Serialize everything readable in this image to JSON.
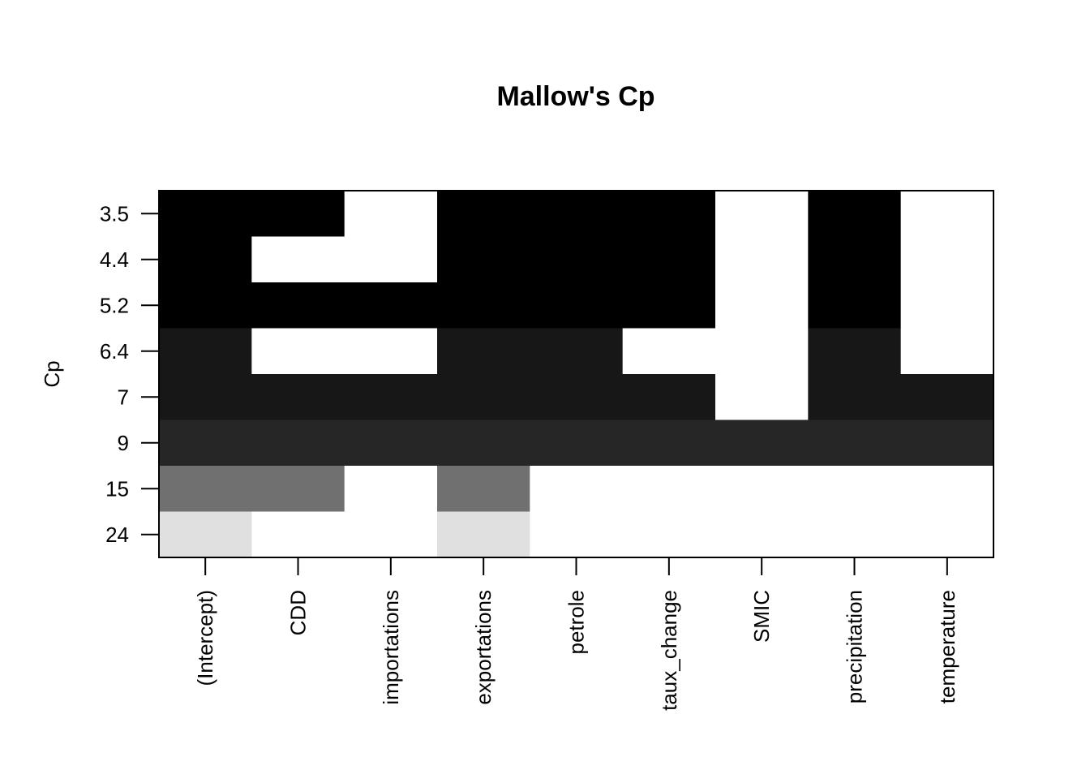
{
  "chart_data": {
    "type": "heatmap",
    "title": "Mallow's Cp",
    "xlabel": "",
    "ylabel": "Cp",
    "x_categories": [
      "(Intercept)",
      "CDD",
      "importations",
      "exportations",
      "petrole",
      "taux_change",
      "SMIC",
      "precipitation",
      "temperature"
    ],
    "rows": [
      {
        "label": "3.5",
        "shade": "#000000",
        "included": [
          1,
          1,
          0,
          1,
          1,
          1,
          0,
          1,
          0
        ]
      },
      {
        "label": "4.4",
        "shade": "#000000",
        "included": [
          1,
          0,
          0,
          1,
          1,
          1,
          0,
          1,
          0
        ]
      },
      {
        "label": "5.2",
        "shade": "#000000",
        "included": [
          1,
          1,
          1,
          1,
          1,
          1,
          0,
          1,
          0
        ]
      },
      {
        "label": "6.4",
        "shade": "#171717",
        "included": [
          1,
          0,
          0,
          1,
          1,
          0,
          0,
          1,
          0
        ]
      },
      {
        "label": "7",
        "shade": "#171717",
        "included": [
          1,
          1,
          1,
          1,
          1,
          1,
          0,
          1,
          1
        ]
      },
      {
        "label": "9",
        "shade": "#262626",
        "included": [
          1,
          1,
          1,
          1,
          1,
          1,
          1,
          1,
          1
        ]
      },
      {
        "label": "15",
        "shade": "#707070",
        "included": [
          1,
          1,
          0,
          1,
          0,
          0,
          0,
          0,
          0
        ]
      },
      {
        "label": "24",
        "shade": "#e0e0e0",
        "included": [
          1,
          0,
          0,
          1,
          0,
          0,
          0,
          0,
          0
        ]
      }
    ],
    "colors": {
      "excluded": "#ffffff",
      "border": "#000000"
    },
    "grid": false,
    "legend": "none"
  }
}
